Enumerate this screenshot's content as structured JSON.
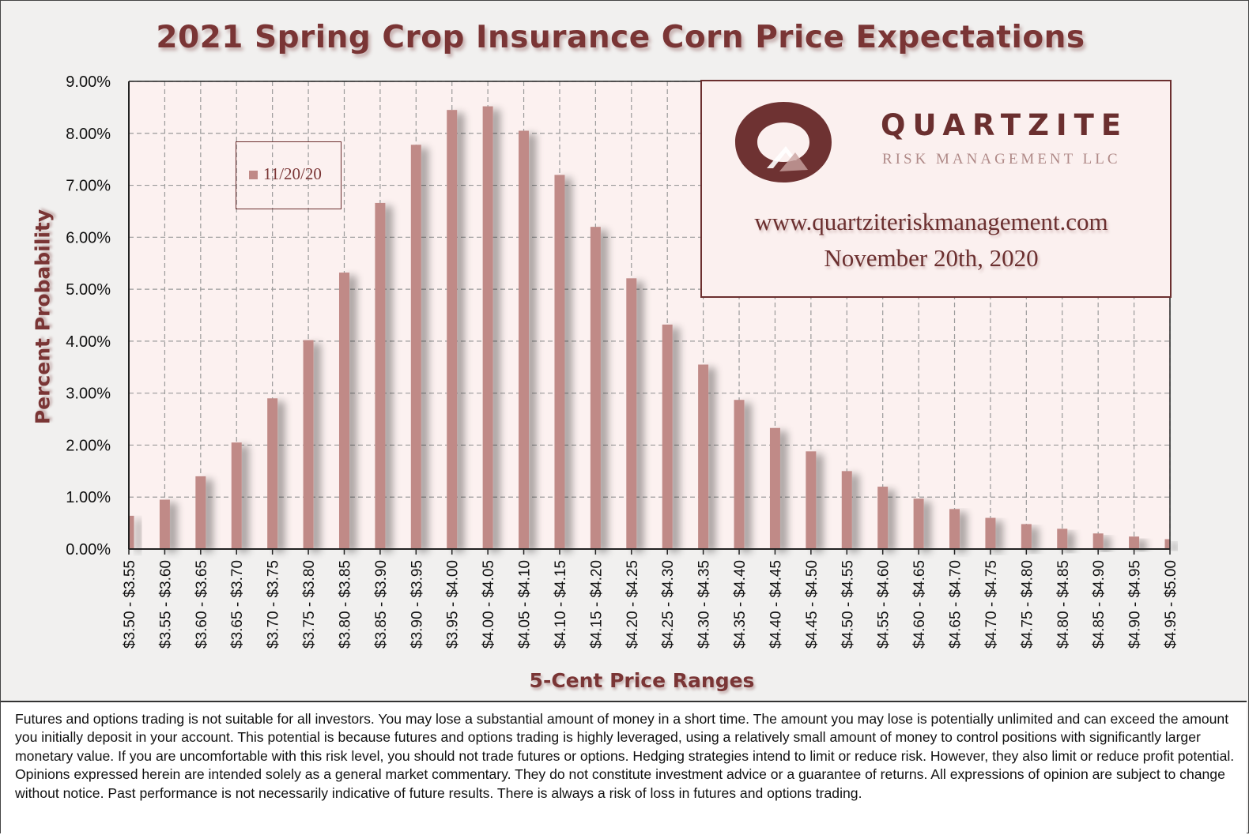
{
  "chart_data": {
    "type": "bar",
    "title": "2021 Spring Crop Insurance Corn Price Expectations",
    "xlabel": "5-Cent Price Ranges",
    "ylabel": "Percent Probability",
    "ylim": [
      0,
      9
    ],
    "y_tick_labels": [
      "0.00%",
      "1.00%",
      "2.00%",
      "3.00%",
      "4.00%",
      "5.00%",
      "6.00%",
      "7.00%",
      "8.00%",
      "9.00%"
    ],
    "grid": "dashed",
    "legend_position": "top-left",
    "categories": [
      "$3.50 - $3.55",
      "$3.55 - $3.60",
      "$3.60 - $3.65",
      "$3.65 - $3.70",
      "$3.70 - $3.75",
      "$3.75 - $3.80",
      "$3.80 - $3.85",
      "$3.85 - $3.90",
      "$3.90 - $3.95",
      "$3.95 - $4.00",
      "$4.00 - $4.05",
      "$4.05 - $4.10",
      "$4.10 - $4.15",
      "$4.15 - $4.20",
      "$4.20 - $4.25",
      "$4.25 - $4.30",
      "$4.30 - $4.35",
      "$4.35 - $4.40",
      "$4.40 - $4.45",
      "$4.45 - $4.50",
      "$4.50 - $4.55",
      "$4.55 - $4.60",
      "$4.60 - $4.65",
      "$4.65 - $4.70",
      "$4.70 - $4.75",
      "$4.75 - $4.80",
      "$4.80 - $4.85",
      "$4.85 - $4.90",
      "$4.90 - $4.95",
      "$4.95 - $5.00"
    ],
    "series": [
      {
        "name": "11/20/20",
        "color": "#c08a87",
        "values": [
          0.64,
          0.95,
          1.4,
          2.05,
          2.9,
          4.02,
          5.32,
          6.66,
          7.78,
          8.45,
          8.52,
          8.05,
          7.2,
          6.2,
          5.21,
          4.32,
          3.55,
          2.87,
          2.33,
          1.88,
          1.5,
          1.2,
          0.97,
          0.77,
          0.6,
          0.48,
          0.39,
          0.3,
          0.24,
          0.19
        ]
      }
    ]
  },
  "brand": {
    "name": "QUARTZITE",
    "subtitle": "RISK MANAGEMENT LLC",
    "url": "www.quartziteriskmanagement.com",
    "date": "November 20th, 2020",
    "logo_icon": "quartzite-ring-logo",
    "primary_color": "#6b2f2f"
  },
  "disclaimer": "Futures and options trading is not suitable for all investors. You may lose a substantial amount of money in a short time. The amount you may lose is potentially unlimited and can exceed the amount you initially deposit in your account. This potential is because futures and options trading is highly leveraged, using a relatively small amount of money to control positions with significantly larger monetary value. If you are uncomfortable with this risk level, you should not trade futures or options. Hedging strategies intend to limit or reduce risk. However, they also limit or reduce profit potential. Opinions expressed herein are intended solely as a general market commentary. They do not constitute investment advice or a guarantee of returns. All expressions of opinion are subject to change without notice. Past performance is not necessarily indicative of future results. There is always a risk of loss in futures and options trading."
}
